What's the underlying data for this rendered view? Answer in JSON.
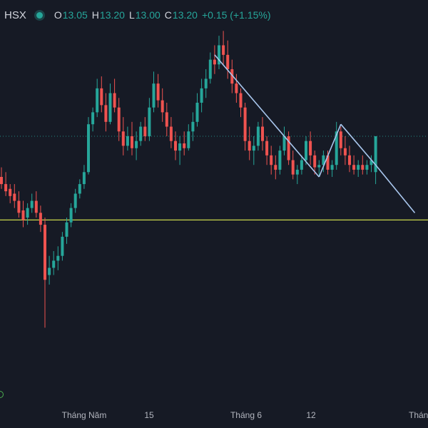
{
  "legend": {
    "symbol": "HSX",
    "open_key": "O",
    "open": "13.05",
    "high_key": "H",
    "high": "13.20",
    "low_key": "L",
    "low": "13.00",
    "close_key": "C",
    "close": "13.20",
    "change": "+0.15 (+1.15%)"
  },
  "colors": {
    "background": "#161a25",
    "up": "#26a69a",
    "down": "#ef5350",
    "trendline": "#a9c7ee",
    "support_line": "#c9d64a",
    "price_line": "#26a69a"
  },
  "chart_data": {
    "type": "candlestick",
    "title": "",
    "x_tick_labels": [
      "Tháng Năm",
      "15",
      "Tháng 6",
      "12",
      "Tháng"
    ],
    "y_range": [
      12.1,
      13.65
    ],
    "current_price": 13.2,
    "support_level": 12.85,
    "candles": [
      [
        13.03,
        13.07,
        12.98,
        13.0
      ],
      [
        13.0,
        13.05,
        12.95,
        12.97
      ],
      [
        12.98,
        13.0,
        12.92,
        12.95
      ],
      [
        12.96,
        13.0,
        12.9,
        12.93
      ],
      [
        12.93,
        12.97,
        12.86,
        12.88
      ],
      [
        12.89,
        12.93,
        12.82,
        12.85
      ],
      [
        12.86,
        12.92,
        12.83,
        12.9
      ],
      [
        12.9,
        12.96,
        12.88,
        12.93
      ],
      [
        12.93,
        12.97,
        12.86,
        12.88
      ],
      [
        12.88,
        12.91,
        12.8,
        12.83
      ],
      [
        12.83,
        12.86,
        12.4,
        12.6
      ],
      [
        12.62,
        12.7,
        12.58,
        12.65
      ],
      [
        12.65,
        12.72,
        12.62,
        12.68
      ],
      [
        12.68,
        12.74,
        12.64,
        12.7
      ],
      [
        12.7,
        12.8,
        12.68,
        12.78
      ],
      [
        12.78,
        12.86,
        12.75,
        12.84
      ],
      [
        12.84,
        12.92,
        12.82,
        12.9
      ],
      [
        12.9,
        12.98,
        12.88,
        12.96
      ],
      [
        12.96,
        13.02,
        12.94,
        13.0
      ],
      [
        13.0,
        13.08,
        12.98,
        13.05
      ],
      [
        13.05,
        13.28,
        13.04,
        13.25
      ],
      [
        13.25,
        13.32,
        13.22,
        13.3
      ],
      [
        13.3,
        13.44,
        13.28,
        13.4
      ],
      [
        13.4,
        13.45,
        13.3,
        13.33
      ],
      [
        13.33,
        13.38,
        13.22,
        13.26
      ],
      [
        13.26,
        13.42,
        13.25,
        13.38
      ],
      [
        13.38,
        13.44,
        13.3,
        13.32
      ],
      [
        13.32,
        13.36,
        13.18,
        13.22
      ],
      [
        13.22,
        13.28,
        13.12,
        13.16
      ],
      [
        13.16,
        13.24,
        13.14,
        13.2
      ],
      [
        13.2,
        13.26,
        13.12,
        13.15
      ],
      [
        13.15,
        13.22,
        13.1,
        13.18
      ],
      [
        13.18,
        13.26,
        13.16,
        13.24
      ],
      [
        13.24,
        13.28,
        13.18,
        13.2
      ],
      [
        13.2,
        13.36,
        13.18,
        13.32
      ],
      [
        13.32,
        13.47,
        13.3,
        13.42
      ],
      [
        13.42,
        13.46,
        13.32,
        13.35
      ],
      [
        13.35,
        13.4,
        13.26,
        13.3
      ],
      [
        13.3,
        13.34,
        13.2,
        13.24
      ],
      [
        13.24,
        13.28,
        13.15,
        13.18
      ],
      [
        13.18,
        13.22,
        13.1,
        13.14
      ],
      [
        13.14,
        13.2,
        13.08,
        13.17
      ],
      [
        13.17,
        13.22,
        13.12,
        13.15
      ],
      [
        13.15,
        13.25,
        13.14,
        13.22
      ],
      [
        13.22,
        13.3,
        13.18,
        13.26
      ],
      [
        13.26,
        13.38,
        13.24,
        13.34
      ],
      [
        13.34,
        13.44,
        13.3,
        13.4
      ],
      [
        13.4,
        13.48,
        13.36,
        13.44
      ],
      [
        13.44,
        13.55,
        13.42,
        13.52
      ],
      [
        13.52,
        13.58,
        13.46,
        13.5
      ],
      [
        13.5,
        13.62,
        13.48,
        13.58
      ],
      [
        13.58,
        13.64,
        13.5,
        13.54
      ],
      [
        13.54,
        13.6,
        13.44,
        13.48
      ],
      [
        13.48,
        13.52,
        13.38,
        13.42
      ],
      [
        13.42,
        13.46,
        13.34,
        13.38
      ],
      [
        13.38,
        13.4,
        13.28,
        13.32
      ],
      [
        13.32,
        13.34,
        13.14,
        13.18
      ],
      [
        13.18,
        13.24,
        13.1,
        13.14
      ],
      [
        13.14,
        13.2,
        13.08,
        13.16
      ],
      [
        13.16,
        13.26,
        13.14,
        13.24
      ],
      [
        13.24,
        13.28,
        13.14,
        13.18
      ],
      [
        13.18,
        13.2,
        13.08,
        13.12
      ],
      [
        13.12,
        13.16,
        13.04,
        13.08
      ],
      [
        13.08,
        13.12,
        13.02,
        13.06
      ],
      [
        13.06,
        13.16,
        13.04,
        13.14
      ],
      [
        13.14,
        13.24,
        13.12,
        13.2
      ],
      [
        13.2,
        13.22,
        13.08,
        13.1
      ],
      [
        13.1,
        13.14,
        13.02,
        13.04
      ],
      [
        13.04,
        13.08,
        13.0,
        13.06
      ],
      [
        13.06,
        13.12,
        13.04,
        13.1
      ],
      [
        13.1,
        13.2,
        13.08,
        13.18
      ],
      [
        13.18,
        13.22,
        13.08,
        13.12
      ],
      [
        13.12,
        13.14,
        13.04,
        13.07
      ],
      [
        13.07,
        13.1,
        13.03,
        13.08
      ],
      [
        13.08,
        13.14,
        13.05,
        13.12
      ],
      [
        13.12,
        13.14,
        13.04,
        13.06
      ],
      [
        13.06,
        13.1,
        13.03,
        13.08
      ],
      [
        13.08,
        13.26,
        13.06,
        13.22
      ],
      [
        13.22,
        13.24,
        13.12,
        13.15
      ],
      [
        13.15,
        13.2,
        13.08,
        13.12
      ],
      [
        13.12,
        13.16,
        13.05,
        13.08
      ],
      [
        13.08,
        13.12,
        13.04,
        13.06
      ],
      [
        13.06,
        13.1,
        13.03,
        13.08
      ],
      [
        13.08,
        13.12,
        13.04,
        13.06
      ],
      [
        13.06,
        13.1,
        13.04,
        13.08
      ],
      [
        13.08,
        13.12,
        13.05,
        13.1
      ],
      [
        13.05,
        13.2,
        13.0,
        13.2
      ]
    ],
    "trendlines": [
      {
        "points": [
          [
            49,
            13.54
          ],
          [
            73,
            13.03
          ]
        ]
      },
      {
        "points": [
          [
            73,
            13.03
          ],
          [
            78,
            13.25
          ]
        ]
      },
      {
        "points": [
          [
            78,
            13.25
          ],
          [
            86,
            13.08
          ]
        ]
      },
      {
        "points": [
          [
            86,
            13.08
          ],
          [
            95,
            12.88
          ]
        ]
      }
    ]
  }
}
